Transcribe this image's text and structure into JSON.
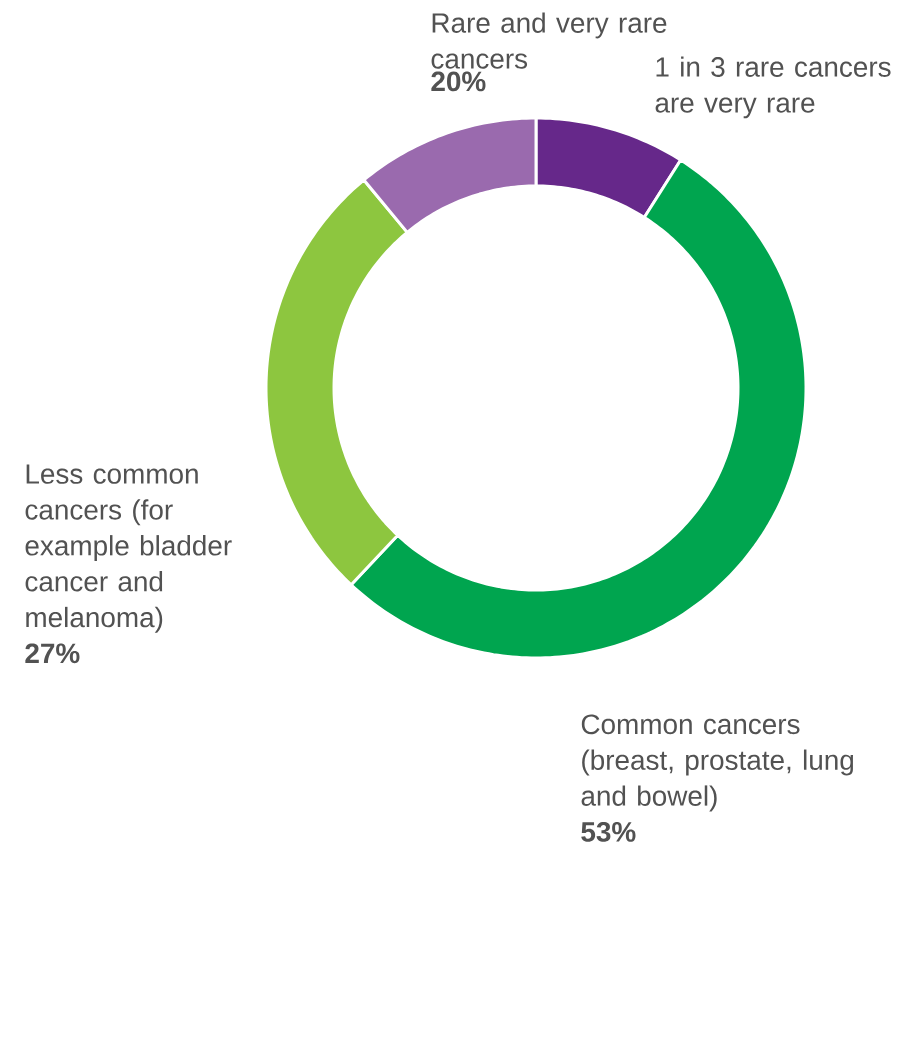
{
  "chart_data": {
    "type": "donut",
    "categories": [
      "1 in 3 rare cancers are very rare",
      "Common cancers (breast, prostate, lung and bowel)",
      "Less common cancers (for example bladder cancer and melanoma)",
      "Rare and very rare cancers"
    ],
    "values": [
      9,
      53,
      27,
      11
    ],
    "colors": [
      "#66288a",
      "#00a54f",
      "#8dc63f",
      "#9a6aae"
    ],
    "value_labels": [
      null,
      "53%",
      "27%",
      null
    ],
    "annotations": [
      "20%"
    ]
  }
}
